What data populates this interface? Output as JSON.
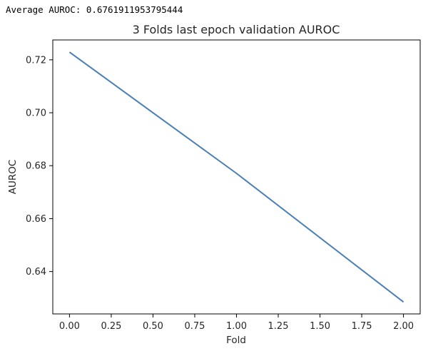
{
  "output": {
    "text": "Average AUROC: 0.6761911953795444"
  },
  "chart_data": {
    "type": "line",
    "title": "3 Folds last epoch validation AUROC",
    "xlabel": "Fold",
    "ylabel": "AUROC",
    "x": [
      0,
      1,
      2
    ],
    "series": [
      {
        "values": [
          0.7229,
          0.6771,
          0.6285
        ],
        "color": "#4a7fb5"
      }
    ],
    "xlim": [
      -0.1,
      2.1
    ],
    "ylim": [
      0.624,
      0.7275
    ],
    "xticks": [
      0.0,
      0.25,
      0.5,
      0.75,
      1.0,
      1.25,
      1.5,
      1.75,
      2.0
    ],
    "xtick_labels": [
      "0.00",
      "0.25",
      "0.50",
      "0.75",
      "1.00",
      "1.25",
      "1.50",
      "1.75",
      "2.00"
    ],
    "yticks": [
      0.64,
      0.66,
      0.68,
      0.7,
      0.72
    ],
    "ytick_labels": [
      "0.64",
      "0.66",
      "0.68",
      "0.70",
      "0.72"
    ],
    "grid": false,
    "legend": false
  }
}
